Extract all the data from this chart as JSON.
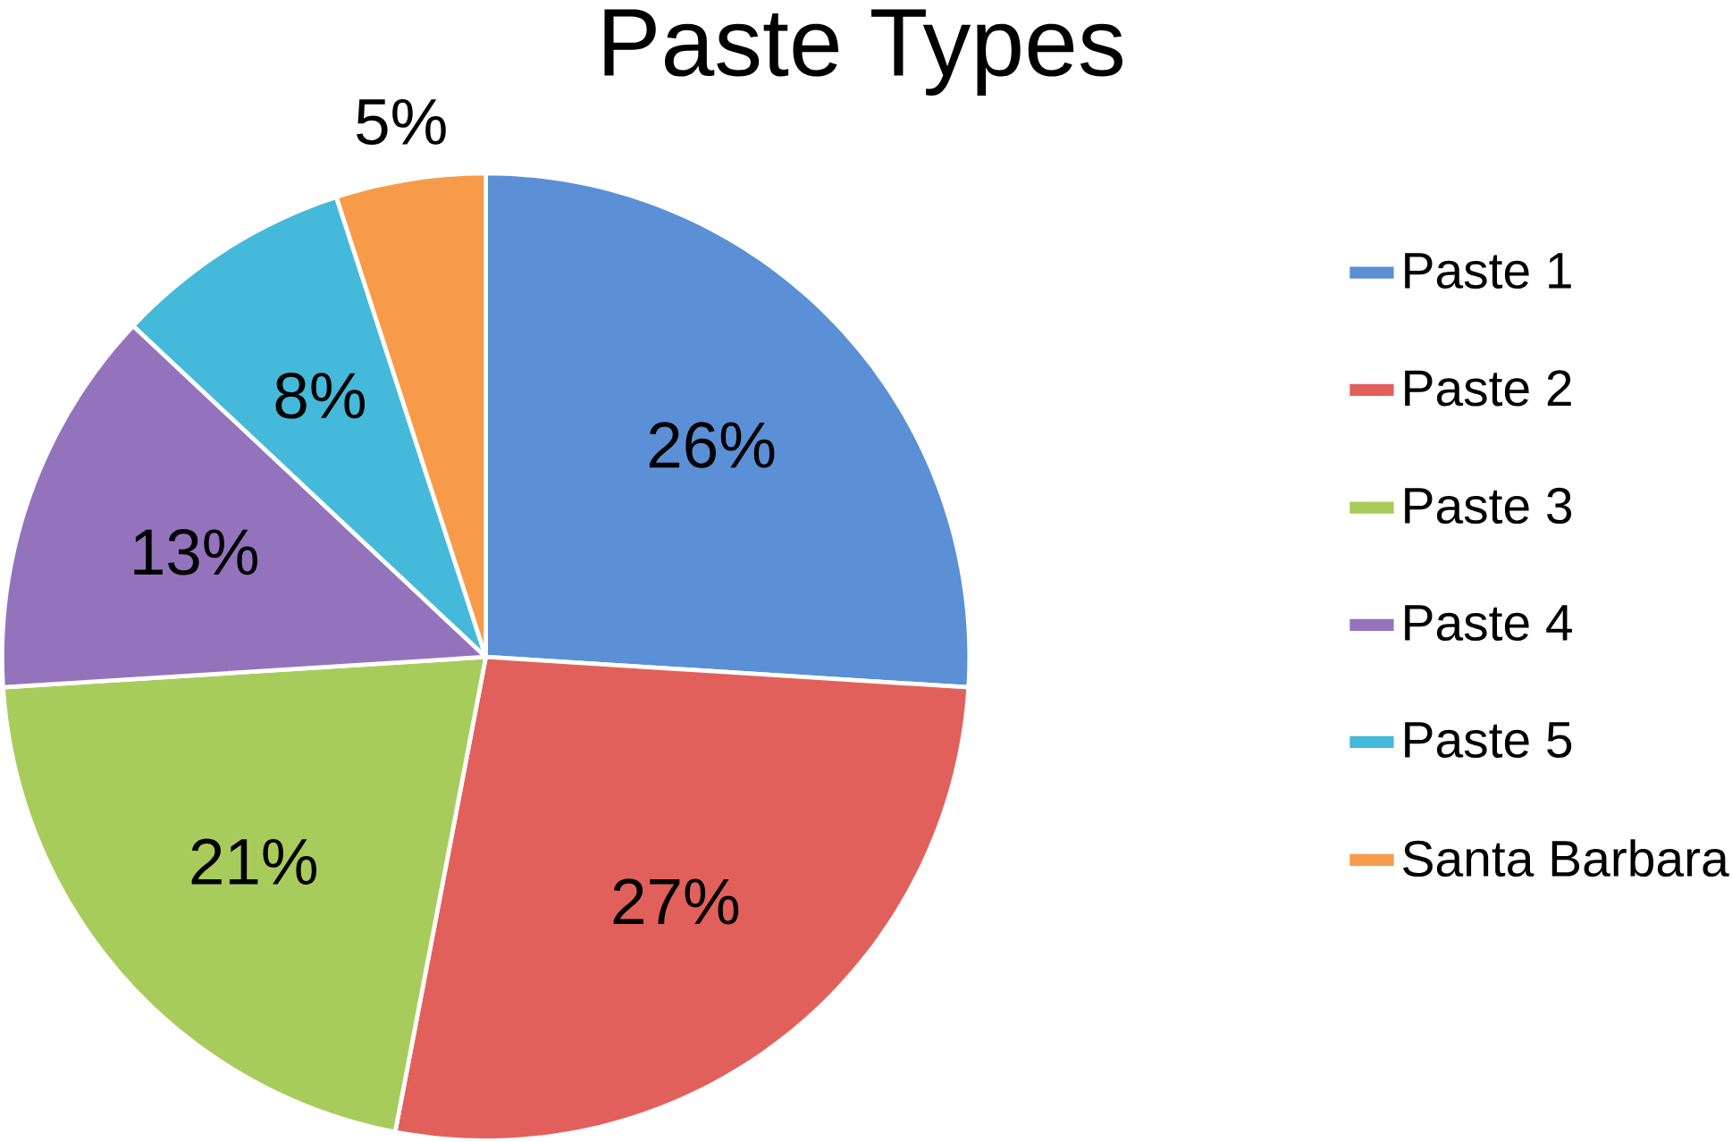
{
  "chart_data": {
    "type": "pie",
    "title": "Paste Types",
    "categories": [
      "Paste 1",
      "Paste 2",
      "Paste 3",
      "Paste 4",
      "Paste 5",
      "Santa Barbara"
    ],
    "values": [
      26,
      27,
      21,
      13,
      8,
      5
    ],
    "value_labels": [
      "26%",
      "27%",
      "21%",
      "13%",
      "8%",
      "5%"
    ],
    "colors": [
      "#5b8fd6",
      "#e2605b",
      "#a8cc5c",
      "#9473bd",
      "#45b9d9",
      "#f79b4a"
    ],
    "legend": "right"
  }
}
